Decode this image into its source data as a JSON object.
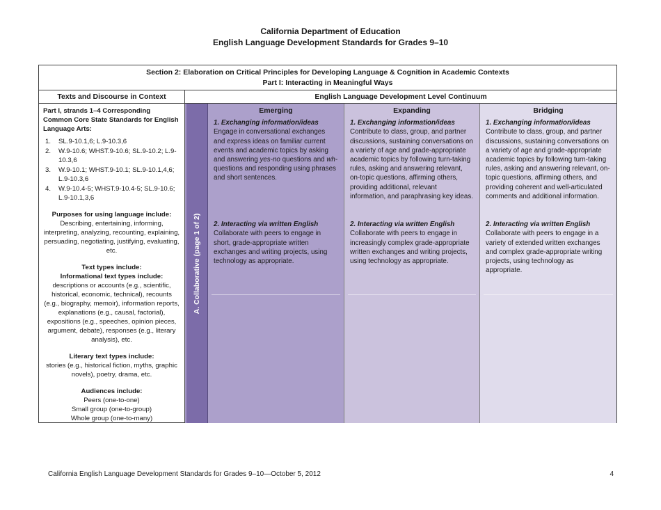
{
  "page": {
    "title_line1": "California Department of Education",
    "title_line2": "English Language Development Standards for Grades 9–10",
    "footer_left": "California English Language Development Standards for Grades 9–10—October 5, 2012",
    "footer_page_number": "4"
  },
  "table": {
    "section_header_line1": "Section 2: Elaboration on Critical Principles for Developing Language & Cognition in Academic Contexts",
    "section_header_line2": "Part I: Interacting in Meaningful Ways",
    "left_header": "Texts and Discourse in Context",
    "right_header": "English Language Development Level Continuum",
    "context_column": {
      "ccss_heading": "Part I, strands 1–4 Corresponding Common Core State Standards for English Language Arts:",
      "ccss_items": [
        {
          "num": "1.",
          "text": "SL.9-10.1,6; L.9-10.3,6"
        },
        {
          "num": "2.",
          "text": "W.9-10.6; WHST.9-10.6; SL.9-10.2; L.9-10.3,6"
        },
        {
          "num": "3.",
          "text": "W.9-10.1; WHST.9-10.1; SL.9-10.1,4,6; L.9-10.3,6"
        },
        {
          "num": "4.",
          "text": "W.9-10.4-5; WHST.9-10.4-5; SL.9-10.6; L.9-10.1,3,6"
        }
      ],
      "purposes_heading": "Purposes for using language include:",
      "purposes_body": "Describing, entertaining, informing, interpreting, analyzing, recounting, explaining, persuading, negotiating, justifying, evaluating, etc.",
      "text_types_heading": "Text types include:",
      "informational_heading": "Informational text types include:",
      "informational_body": "descriptions or accounts (e.g., scientific, historical, economic, technical), recounts (e.g., biography, memoir), information reports, explanations (e.g., causal, factorial), expositions (e.g., speeches, opinion pieces, argument, debate), responses (e.g., literary analysis), etc.",
      "literary_heading": "Literary text types include:",
      "literary_body": "stories (e.g., historical fiction, myths, graphic novels), poetry, drama, etc.",
      "audiences_heading": "Audiences include:",
      "audiences_items": [
        "Peers (one-to-one)",
        "Small group (one-to-group)",
        "Whole group (one-to-many)"
      ]
    },
    "mode_strip_label": "A. Collaborative (page 1 of 2)",
    "levels": [
      {
        "name": "Emerging",
        "item1_heading": "1. Exchanging information/ideas",
        "item1_parts": [
          "Engage in conversational exchanges and express ideas on familiar current events and academic topics by asking and answering ",
          "yes-no",
          " questions and ",
          "wh-",
          " questions and responding using phrases and short sentences."
        ],
        "item2_heading": "2. Interacting via written English",
        "item2_body": "Collaborate with peers to engage in short, grade-appropriate written exchanges and writing projects, using technology as appropriate."
      },
      {
        "name": "Expanding",
        "item1_heading": "1. Exchanging information/ideas",
        "item1_body": "Contribute to class, group, and partner discussions, sustaining conversations on a variety of age and grade-appropriate academic topics by following turn-taking rules, asking and answering relevant, on-topic questions, affirming others, providing additional, relevant information, and paraphrasing key ideas.",
        "item2_heading": "2. Interacting via written English",
        "item2_body": "Collaborate with peers to engage in increasingly complex grade-appropriate written exchanges and writing projects, using technology as appropriate."
      },
      {
        "name": "Bridging",
        "item1_heading": "1. Exchanging information/ideas",
        "item1_body": "Contribute to class, group, and partner discussions, sustaining conversations on a variety of age and grade-appropriate academic topics by following turn-taking rules, asking and answering relevant, on-topic questions, affirming others, and providing coherent and well-articulated comments and additional information.",
        "item2_heading": "2. Interacting via written English",
        "item2_body": "Collaborate with peers to engage in a variety of extended written exchanges and complex grade-appropriate writing projects, using technology as appropriate."
      }
    ],
    "colors": {
      "mode_strip_bg": "#7C6CA9",
      "emerging_bg": "#ACA0CB",
      "expanding_bg": "#CBC2DD",
      "bridging_bg": "#E0DCEC"
    }
  }
}
